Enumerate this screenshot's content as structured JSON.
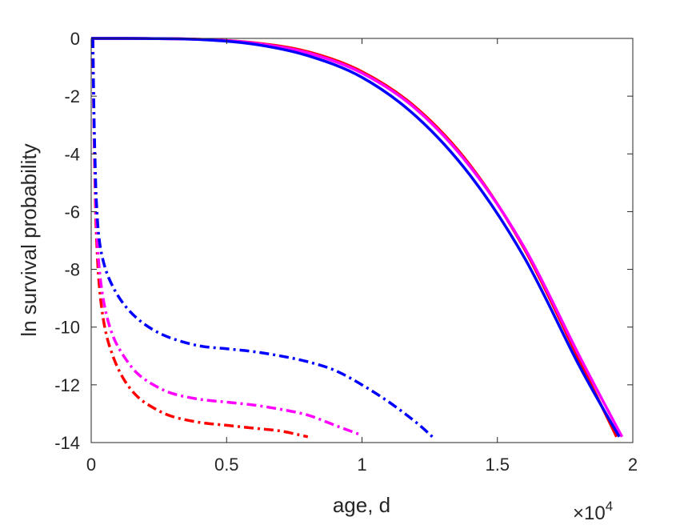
{
  "chart_data": {
    "type": "line",
    "title": "",
    "xlabel": "age, d",
    "ylabel": "ln survival probability",
    "x_scale_exponent": "×10",
    "x_scale_power": "4",
    "xlim": [
      0,
      20000
    ],
    "ylim": [
      -14,
      0
    ],
    "x_ticks": [
      0,
      5000,
      10000,
      15000,
      20000
    ],
    "x_tick_labels": [
      "0",
      "0.5",
      "1",
      "1.5",
      "2"
    ],
    "y_ticks": [
      0,
      -2,
      -4,
      -6,
      -8,
      -10,
      -12,
      -14
    ],
    "y_tick_labels": [
      "0",
      "-2",
      "-4",
      "-6",
      "-8",
      "-10",
      "-12",
      "-14"
    ],
    "grid": false,
    "colors": {
      "red": "#ff0000",
      "magenta": "#ff00ff",
      "blue": "#0000ff"
    },
    "series": [
      {
        "color": "#ff0000",
        "style": "solid",
        "x": [
          0,
          2000,
          4000,
          6000,
          8000,
          10000,
          12000,
          14000,
          16000,
          18000,
          19400
        ],
        "y": [
          0,
          -0.003,
          -0.03,
          -0.15,
          -0.46,
          -1.15,
          -2.4,
          -4.4,
          -7.3,
          -11.1,
          -13.8
        ]
      },
      {
        "color": "#ff00ff",
        "style": "solid",
        "x": [
          0,
          2000,
          4000,
          6000,
          8000,
          10000,
          12000,
          14000,
          16000,
          18000,
          19600
        ],
        "y": [
          0,
          -0.003,
          -0.03,
          -0.16,
          -0.5,
          -1.2,
          -2.45,
          -4.45,
          -7.25,
          -10.95,
          -13.8
        ]
      },
      {
        "color": "#0000ff",
        "style": "solid",
        "x": [
          0,
          2000,
          4000,
          6000,
          8000,
          10000,
          12000,
          14000,
          16000,
          18000,
          19500
        ],
        "y": [
          0,
          -0.004,
          -0.04,
          -0.2,
          -0.6,
          -1.35,
          -2.7,
          -4.75,
          -7.6,
          -11.3,
          -13.8
        ]
      },
      {
        "color": "#ff0000",
        "style": "dashdot",
        "x": [
          60,
          100,
          150,
          200,
          300,
          500,
          800,
          1200,
          1700,
          2300,
          3000,
          4000,
          5000,
          6000,
          7000,
          8000
        ],
        "y": [
          0,
          -3,
          -5.5,
          -7,
          -8.6,
          -10,
          -11,
          -11.8,
          -12.4,
          -12.8,
          -13.1,
          -13.3,
          -13.4,
          -13.5,
          -13.6,
          -13.8
        ]
      },
      {
        "color": "#ff00ff",
        "style": "dashdot",
        "x": [
          60,
          100,
          150,
          200,
          300,
          500,
          800,
          1200,
          1700,
          2300,
          3000,
          4000,
          5000,
          6000,
          7000,
          8000,
          9000,
          10000
        ],
        "y": [
          0,
          -2.8,
          -5,
          -6.5,
          -8,
          -9.3,
          -10.3,
          -11,
          -11.6,
          -12,
          -12.3,
          -12.5,
          -12.6,
          -12.7,
          -12.85,
          -13.05,
          -13.4,
          -13.75
        ]
      },
      {
        "color": "#0000ff",
        "style": "dashdot",
        "x": [
          60,
          100,
          150,
          200,
          300,
          500,
          800,
          1200,
          1700,
          2300,
          3000,
          4000,
          5000,
          6000,
          7000,
          8000,
          9000,
          10000,
          11000,
          12000,
          12600
        ],
        "y": [
          0,
          -2.5,
          -4.5,
          -5.8,
          -7,
          -7.9,
          -8.6,
          -9.2,
          -9.7,
          -10.1,
          -10.4,
          -10.65,
          -10.75,
          -10.85,
          -11,
          -11.2,
          -11.5,
          -12,
          -12.6,
          -13.3,
          -13.8
        ]
      }
    ]
  }
}
